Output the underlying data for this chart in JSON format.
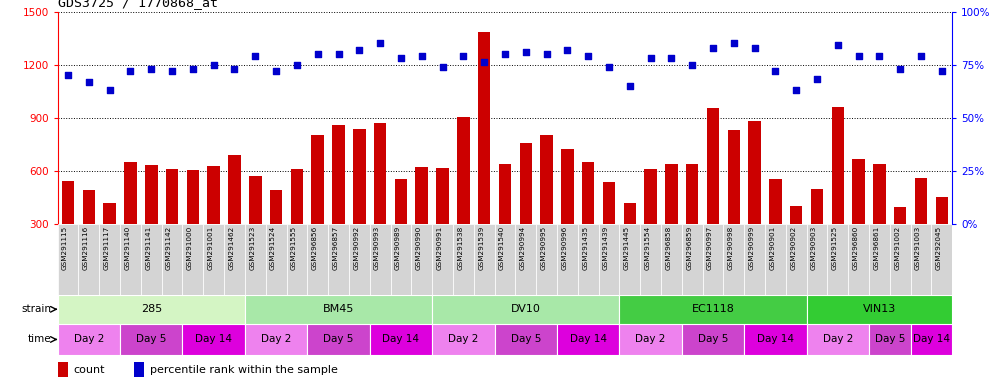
{
  "title": "GDS3725 / 1770868_at",
  "samples": [
    "GSM291115",
    "GSM291116",
    "GSM291117",
    "GSM291140",
    "GSM291141",
    "GSM291142",
    "GSM291000",
    "GSM291001",
    "GSM291462",
    "GSM291523",
    "GSM291524",
    "GSM291555",
    "GSM296856",
    "GSM296857",
    "GSM290992",
    "GSM290993",
    "GSM290989",
    "GSM290990",
    "GSM290991",
    "GSM291538",
    "GSM291539",
    "GSM291540",
    "GSM290994",
    "GSM290995",
    "GSM290996",
    "GSM291435",
    "GSM291439",
    "GSM291445",
    "GSM291554",
    "GSM296858",
    "GSM296859",
    "GSM290997",
    "GSM290998",
    "GSM290999",
    "GSM290901",
    "GSM290902",
    "GSM290903",
    "GSM291525",
    "GSM296860",
    "GSM296861",
    "GSM291002",
    "GSM291003",
    "GSM292045"
  ],
  "counts": [
    540,
    490,
    420,
    650,
    635,
    610,
    605,
    625,
    690,
    570,
    490,
    610,
    805,
    860,
    835,
    870,
    555,
    620,
    615,
    905,
    1385,
    640,
    755,
    800,
    725,
    648,
    535,
    420,
    608,
    640,
    640,
    955,
    830,
    880,
    553,
    400,
    498,
    958,
    668,
    638,
    394,
    558,
    453
  ],
  "percentile": [
    70,
    67,
    63,
    72,
    73,
    72,
    73,
    75,
    73,
    79,
    72,
    75,
    80,
    80,
    82,
    85,
    78,
    79,
    74,
    79,
    76,
    80,
    81,
    80,
    82,
    79,
    74,
    65,
    78,
    78,
    75,
    83,
    85,
    83,
    72,
    63,
    68,
    84,
    79,
    79,
    73,
    79,
    72
  ],
  "strains": [
    {
      "name": "285",
      "start": 0,
      "end": 9,
      "color": "#d4f5c4"
    },
    {
      "name": "BM45",
      "start": 9,
      "end": 18,
      "color": "#a8e8a8"
    },
    {
      "name": "DV10",
      "start": 18,
      "end": 27,
      "color": "#a8e8a8"
    },
    {
      "name": "EC1118",
      "start": 27,
      "end": 36,
      "color": "#44cc44"
    },
    {
      "name": "VIN13",
      "start": 36,
      "end": 43,
      "color": "#33cc33"
    }
  ],
  "times": [
    {
      "name": "Day 2",
      "start": 0,
      "end": 3,
      "color": "#ee82ee"
    },
    {
      "name": "Day 5",
      "start": 3,
      "end": 6,
      "color": "#cc44cc"
    },
    {
      "name": "Day 14",
      "start": 6,
      "end": 9,
      "color": "#dd00dd"
    },
    {
      "name": "Day 2",
      "start": 9,
      "end": 12,
      "color": "#ee82ee"
    },
    {
      "name": "Day 5",
      "start": 12,
      "end": 15,
      "color": "#cc44cc"
    },
    {
      "name": "Day 14",
      "start": 15,
      "end": 18,
      "color": "#dd00dd"
    },
    {
      "name": "Day 2",
      "start": 18,
      "end": 21,
      "color": "#ee82ee"
    },
    {
      "name": "Day 5",
      "start": 21,
      "end": 24,
      "color": "#cc44cc"
    },
    {
      "name": "Day 14",
      "start": 24,
      "end": 27,
      "color": "#dd00dd"
    },
    {
      "name": "Day 2",
      "start": 27,
      "end": 30,
      "color": "#ee82ee"
    },
    {
      "name": "Day 5",
      "start": 30,
      "end": 33,
      "color": "#cc44cc"
    },
    {
      "name": "Day 14",
      "start": 33,
      "end": 36,
      "color": "#dd00dd"
    },
    {
      "name": "Day 2",
      "start": 36,
      "end": 39,
      "color": "#ee82ee"
    },
    {
      "name": "Day 5",
      "start": 39,
      "end": 41,
      "color": "#cc44cc"
    },
    {
      "name": "Day 14",
      "start": 41,
      "end": 43,
      "color": "#dd00dd"
    }
  ],
  "ylim_left": [
    300,
    1500
  ],
  "ylim_right": [
    0,
    100
  ],
  "yticks_left": [
    300,
    600,
    900,
    1200,
    1500
  ],
  "yticks_right": [
    0,
    25,
    50,
    75,
    100
  ],
  "bar_color": "#cc0000",
  "dot_color": "#0000cc",
  "background_color": "#ffffff",
  "legend_count_color": "#cc0000",
  "legend_pct_color": "#0000cc"
}
